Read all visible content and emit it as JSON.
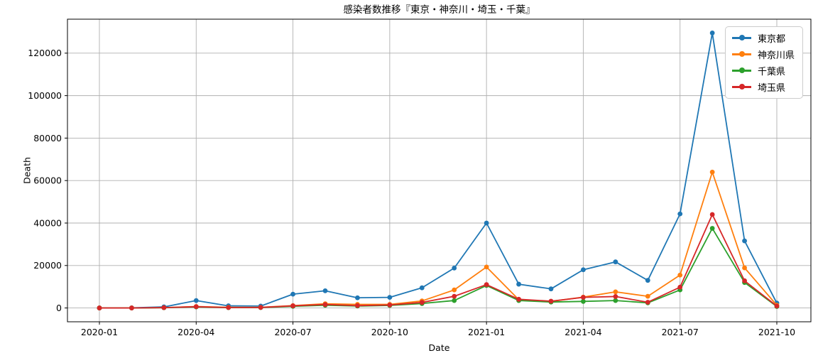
{
  "figure": {
    "title": "感染者数推移『東京・神奈川・埼玉・千葉』"
  },
  "colors": {
    "background": "#ffffff",
    "grid": "#b0b0b0",
    "spine": "#000000",
    "text": "#000000",
    "legend_border": "#cccccc",
    "series_blue": "#1f77b4",
    "series_orange": "#ff7f0e",
    "series_green": "#2ca02c",
    "series_red": "#d62728"
  },
  "chart_data": {
    "type": "line",
    "title": "感染者数推移『東京・神奈川・埼玉・千葉』",
    "xlabel": "Date",
    "ylabel": "Death",
    "grid": true,
    "legend_position": "upper right",
    "x": [
      "2020-01",
      "2020-02",
      "2020-03",
      "2020-04",
      "2020-05",
      "2020-06",
      "2020-07",
      "2020-08",
      "2020-09",
      "2020-10",
      "2020-11",
      "2020-12",
      "2021-01",
      "2021-02",
      "2021-03",
      "2021-04",
      "2021-05",
      "2021-06",
      "2021-07",
      "2021-08",
      "2021-09",
      "2021-10"
    ],
    "xtick_indices": [
      0,
      3,
      6,
      9,
      12,
      15,
      18,
      21
    ],
    "xtick_labels": [
      "2020-01",
      "2020-04",
      "2020-07",
      "2020-10",
      "2021-01",
      "2021-04",
      "2021-07",
      "2021-10"
    ],
    "yticks": [
      0,
      20000,
      40000,
      60000,
      80000,
      100000,
      120000
    ],
    "ylim": [
      -6500,
      136000
    ],
    "series": [
      {
        "name": "東京都",
        "color": "#1f77b4",
        "values": [
          0,
          50,
          500,
          3500,
          1000,
          900,
          6500,
          8100,
          4800,
          5000,
          9500,
          18800,
          40000,
          11200,
          9000,
          18000,
          21700,
          13000,
          44300,
          129500,
          31600,
          2300
        ]
      },
      {
        "name": "神奈川県",
        "color": "#ff7f0e",
        "values": [
          0,
          20,
          150,
          700,
          300,
          300,
          1100,
          2000,
          1700,
          1700,
          3300,
          8500,
          19300,
          3900,
          3100,
          5100,
          7600,
          5500,
          15500,
          64000,
          18900,
          1300
        ]
      },
      {
        "name": "千葉県",
        "color": "#2ca02c",
        "values": [
          0,
          10,
          100,
          500,
          150,
          200,
          800,
          1300,
          900,
          1200,
          2100,
          3500,
          10600,
          3500,
          2800,
          3100,
          3500,
          2400,
          8500,
          37500,
          12000,
          700
        ]
      },
      {
        "name": "埼玉県",
        "color": "#d62728",
        "values": [
          0,
          10,
          150,
          600,
          200,
          250,
          1000,
          1600,
          1100,
          1400,
          2600,
          5500,
          11000,
          4100,
          3200,
          5000,
          5400,
          2700,
          9800,
          44000,
          12800,
          900
        ]
      }
    ]
  }
}
